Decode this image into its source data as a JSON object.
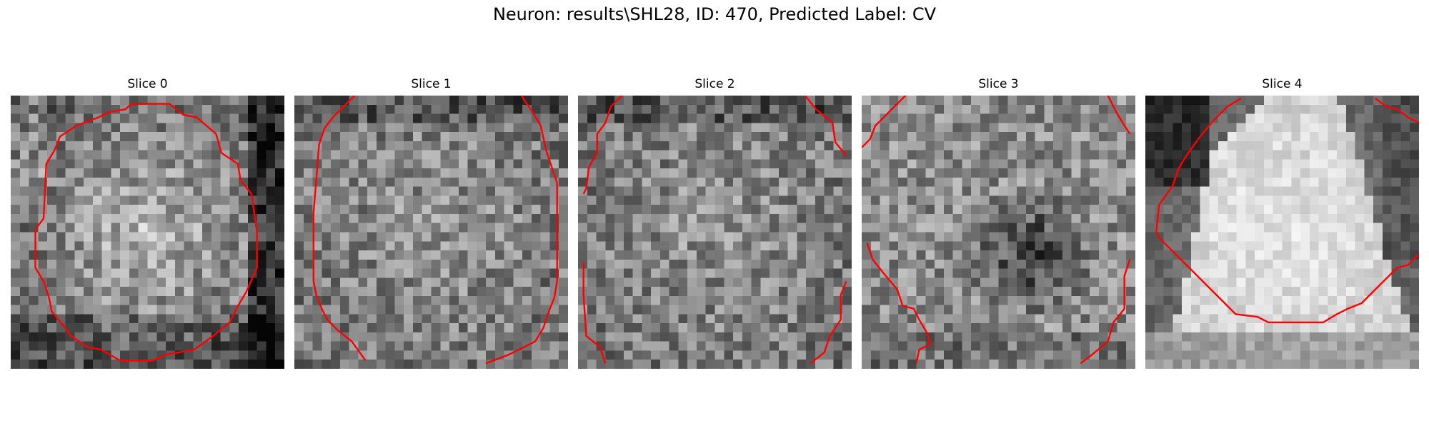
{
  "figure": {
    "title": "Neuron: results\\SHL28, ID: 470, Predicted Label: CV"
  },
  "slices": [
    {
      "label": "Slice 0",
      "seed": 11,
      "pattern": "center-bright",
      "contours": [
        [
          [
            0.44,
            0.03
          ],
          [
            0.58,
            0.03
          ],
          [
            0.63,
            0.07
          ],
          [
            0.68,
            0.08
          ],
          [
            0.75,
            0.14
          ],
          [
            0.77,
            0.21
          ],
          [
            0.83,
            0.25
          ],
          [
            0.84,
            0.31
          ],
          [
            0.88,
            0.36
          ],
          [
            0.9,
            0.5
          ],
          [
            0.9,
            0.63
          ],
          [
            0.86,
            0.72
          ],
          [
            0.83,
            0.77
          ],
          [
            0.8,
            0.83
          ],
          [
            0.74,
            0.88
          ],
          [
            0.67,
            0.93
          ],
          [
            0.56,
            0.95
          ],
          [
            0.52,
            0.97
          ],
          [
            0.4,
            0.97
          ],
          [
            0.33,
            0.93
          ],
          [
            0.28,
            0.92
          ],
          [
            0.22,
            0.88
          ],
          [
            0.19,
            0.84
          ],
          [
            0.15,
            0.79
          ],
          [
            0.14,
            0.74
          ],
          [
            0.12,
            0.68
          ],
          [
            0.09,
            0.63
          ],
          [
            0.09,
            0.49
          ],
          [
            0.12,
            0.45
          ],
          [
            0.13,
            0.25
          ],
          [
            0.16,
            0.2
          ],
          [
            0.18,
            0.15
          ],
          [
            0.24,
            0.11
          ],
          [
            0.32,
            0.08
          ],
          [
            0.36,
            0.06
          ],
          [
            0.42,
            0.05
          ],
          [
            0.44,
            0.03
          ]
        ]
      ]
    },
    {
      "label": "Slice 1",
      "seed": 23,
      "pattern": "uniform",
      "contours": [
        [
          [
            0.22,
            0.0
          ],
          [
            0.14,
            0.08
          ],
          [
            0.11,
            0.12
          ],
          [
            0.09,
            0.18
          ],
          [
            0.08,
            0.31
          ],
          [
            0.07,
            0.43
          ],
          [
            0.07,
            0.55
          ],
          [
            0.07,
            0.68
          ],
          [
            0.08,
            0.73
          ],
          [
            0.1,
            0.78
          ],
          [
            0.12,
            0.82
          ],
          [
            0.16,
            0.86
          ],
          [
            0.21,
            0.9
          ],
          [
            0.26,
            0.97
          ]
        ],
        [
          [
            0.83,
            0.0
          ],
          [
            0.87,
            0.06
          ],
          [
            0.9,
            0.11
          ],
          [
            0.92,
            0.2
          ],
          [
            0.94,
            0.26
          ],
          [
            0.96,
            0.32
          ],
          [
            0.96,
            0.5
          ],
          [
            0.96,
            0.68
          ],
          [
            0.95,
            0.74
          ],
          [
            0.93,
            0.79
          ],
          [
            0.91,
            0.85
          ],
          [
            0.88,
            0.9
          ],
          [
            0.82,
            0.93
          ],
          [
            0.78,
            0.95
          ],
          [
            0.7,
            0.98
          ]
        ]
      ]
    },
    {
      "label": "Slice 2",
      "seed": 37,
      "pattern": "uniform",
      "contours": [
        [
          [
            0.16,
            0.0
          ],
          [
            0.12,
            0.04
          ],
          [
            0.1,
            0.1
          ],
          [
            0.07,
            0.14
          ],
          [
            0.07,
            0.21
          ],
          [
            0.04,
            0.26
          ],
          [
            0.03,
            0.34
          ],
          [
            0.02,
            0.36
          ]
        ],
        [
          [
            0.83,
            0.0
          ],
          [
            0.87,
            0.05
          ],
          [
            0.93,
            0.1
          ],
          [
            0.94,
            0.17
          ],
          [
            0.98,
            0.22
          ]
        ],
        [
          [
            0.02,
            0.61
          ],
          [
            0.02,
            0.73
          ],
          [
            0.03,
            0.88
          ],
          [
            0.08,
            0.92
          ],
          [
            0.1,
            0.98
          ]
        ],
        [
          [
            0.98,
            0.68
          ],
          [
            0.96,
            0.73
          ],
          [
            0.96,
            0.82
          ],
          [
            0.92,
            0.88
          ],
          [
            0.9,
            0.94
          ],
          [
            0.85,
            0.98
          ]
        ]
      ]
    },
    {
      "label": "Slice 3",
      "seed": 53,
      "pattern": "dark-center",
      "contours": [
        [
          [
            0.16,
            0.0
          ],
          [
            0.1,
            0.06
          ],
          [
            0.05,
            0.11
          ],
          [
            0.03,
            0.16
          ],
          [
            0.0,
            0.19
          ]
        ],
        [
          [
            0.9,
            0.0
          ],
          [
            0.93,
            0.06
          ],
          [
            0.96,
            0.11
          ],
          [
            0.98,
            0.14
          ]
        ],
        [
          [
            0.02,
            0.54
          ],
          [
            0.04,
            0.6
          ],
          [
            0.08,
            0.65
          ],
          [
            0.13,
            0.71
          ],
          [
            0.15,
            0.77
          ],
          [
            0.19,
            0.78
          ],
          [
            0.21,
            0.82
          ],
          [
            0.24,
            0.87
          ],
          [
            0.25,
            0.91
          ],
          [
            0.21,
            0.93
          ],
          [
            0.2,
            0.98
          ]
        ],
        [
          [
            0.98,
            0.6
          ],
          [
            0.96,
            0.66
          ],
          [
            0.96,
            0.78
          ],
          [
            0.92,
            0.83
          ],
          [
            0.9,
            0.9
          ],
          [
            0.84,
            0.95
          ],
          [
            0.8,
            0.98
          ]
        ]
      ]
    },
    {
      "label": "Slice 4",
      "seed": 71,
      "pattern": "wedge",
      "contours": [
        [
          [
            0.35,
            0.01
          ],
          [
            0.3,
            0.04
          ],
          [
            0.25,
            0.09
          ],
          [
            0.2,
            0.15
          ],
          [
            0.15,
            0.22
          ],
          [
            0.12,
            0.27
          ],
          [
            0.1,
            0.33
          ],
          [
            0.05,
            0.4
          ],
          [
            0.04,
            0.5
          ],
          [
            0.05,
            0.52
          ],
          [
            0.26,
            0.73
          ],
          [
            0.3,
            0.77
          ],
          [
            0.33,
            0.8
          ],
          [
            0.41,
            0.81
          ],
          [
            0.45,
            0.83
          ],
          [
            0.65,
            0.83
          ],
          [
            0.7,
            0.8
          ],
          [
            0.74,
            0.78
          ],
          [
            0.79,
            0.76
          ],
          [
            0.84,
            0.71
          ],
          [
            0.89,
            0.66
          ],
          [
            0.92,
            0.63
          ],
          [
            0.96,
            0.62
          ],
          [
            1.0,
            0.58
          ]
        ],
        [
          [
            0.84,
            0.01
          ],
          [
            0.88,
            0.04
          ],
          [
            0.92,
            0.05
          ],
          [
            0.96,
            0.08
          ],
          [
            1.0,
            0.1
          ]
        ]
      ]
    }
  ]
}
